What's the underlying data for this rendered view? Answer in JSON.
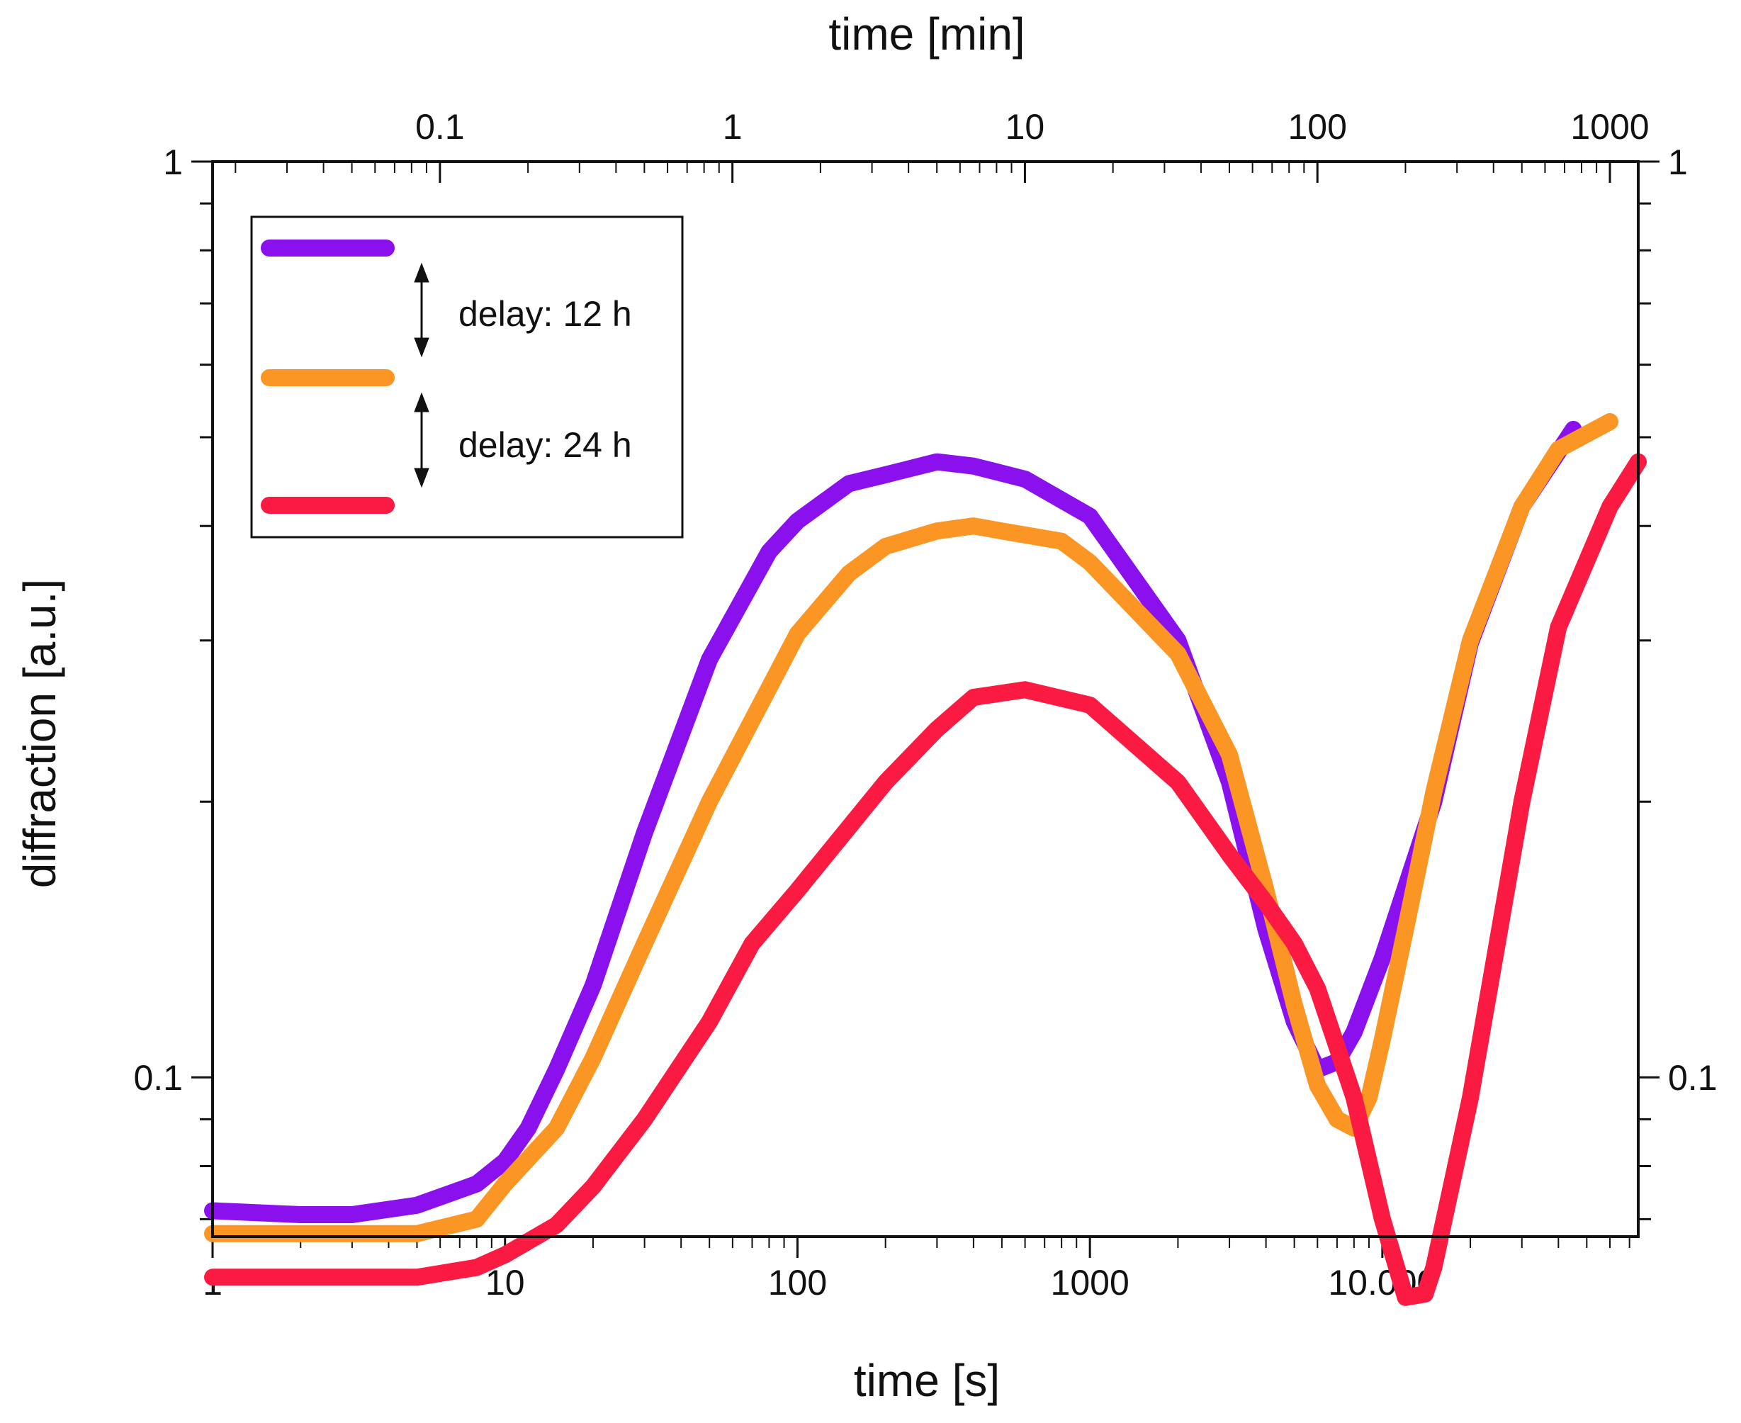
{
  "chart_data": {
    "type": "line",
    "xlabel": "time [s]",
    "x2label": "time [min]",
    "ylabel": "diffraction [a.u.]",
    "xscale": "log",
    "yscale": "log",
    "xlim": [
      1,
      75000
    ],
    "x2lim": [
      0.0167,
      1250
    ],
    "ylim": [
      0.067,
      1
    ],
    "x_ticks": [
      {
        "value": 1,
        "label": "1"
      },
      {
        "value": 10,
        "label": "10"
      },
      {
        "value": 100,
        "label": "100"
      },
      {
        "value": 1000,
        "label": "1000"
      },
      {
        "value": 10000,
        "label": "10.000"
      }
    ],
    "x2_ticks": [
      {
        "value": 0.1,
        "label": "0.1"
      },
      {
        "value": 1,
        "label": "1"
      },
      {
        "value": 10,
        "label": "10"
      },
      {
        "value": 100,
        "label": "100"
      },
      {
        "value": 1000,
        "label": "1000"
      }
    ],
    "y_ticks_left": [
      {
        "value": 1,
        "label": "1"
      },
      {
        "value": 0.1,
        "label": "0.1"
      }
    ],
    "y_ticks_right": [
      {
        "value": 1,
        "label": "1"
      },
      {
        "value": 0.1,
        "label": "0.1"
      }
    ],
    "legend": {
      "placement": "top-left",
      "annotations": [
        {
          "text": "delay: 12 h",
          "between": [
            "purple",
            "orange"
          ]
        },
        {
          "text": "delay: 24 h",
          "between": [
            "orange",
            "red"
          ]
        }
      ]
    },
    "series": [
      {
        "name": "purple",
        "color": "#8a10ee",
        "x": [
          1,
          2,
          3,
          5,
          8,
          10,
          12,
          15,
          20,
          30,
          50,
          80,
          100,
          150,
          200,
          300,
          400,
          600,
          1000,
          2000,
          3000,
          4000,
          5000,
          6000,
          7000,
          8000,
          10000,
          15000,
          20000,
          30000,
          45000
        ],
        "y": [
          0.0715,
          0.0708,
          0.0708,
          0.0725,
          0.0765,
          0.081,
          0.088,
          0.102,
          0.126,
          0.185,
          0.286,
          0.375,
          0.405,
          0.445,
          0.455,
          0.47,
          0.465,
          0.45,
          0.41,
          0.3,
          0.21,
          0.145,
          0.115,
          0.102,
          0.104,
          0.112,
          0.135,
          0.2,
          0.298,
          0.42,
          0.51
        ]
      },
      {
        "name": "orange",
        "color": "#fb9524",
        "x": [
          1,
          2,
          5,
          8,
          10,
          15,
          20,
          30,
          50,
          100,
          150,
          200,
          300,
          400,
          500,
          800,
          1000,
          2000,
          3000,
          4000,
          5000,
          6000,
          7000,
          8000,
          9000,
          10000,
          12000,
          15000,
          20000,
          30000,
          40000,
          60000
        ],
        "y": [
          0.0675,
          0.0675,
          0.0675,
          0.07,
          0.0765,
          0.088,
          0.105,
          0.14,
          0.2,
          0.305,
          0.355,
          0.38,
          0.395,
          0.4,
          0.395,
          0.385,
          0.365,
          0.29,
          0.225,
          0.16,
          0.12,
          0.098,
          0.09,
          0.088,
          0.095,
          0.11,
          0.145,
          0.205,
          0.3,
          0.42,
          0.485,
          0.52
        ]
      },
      {
        "name": "red",
        "color": "#fb1a42",
        "x": [
          1,
          2,
          5,
          8,
          10,
          15,
          20,
          30,
          50,
          70,
          100,
          200,
          300,
          400,
          600,
          1000,
          2000,
          3000,
          4000,
          5000,
          6000,
          8000,
          10000,
          12000,
          14000,
          15000,
          20000,
          30000,
          40000,
          60000,
          75000
        ],
        "y": [
          0.0605,
          0.0605,
          0.0605,
          0.062,
          0.064,
          0.069,
          0.076,
          0.09,
          0.115,
          0.14,
          0.16,
          0.21,
          0.24,
          0.26,
          0.265,
          0.255,
          0.21,
          0.175,
          0.155,
          0.14,
          0.125,
          0.095,
          0.07,
          0.0575,
          0.058,
          0.062,
          0.095,
          0.2,
          0.31,
          0.42,
          0.47
        ]
      }
    ]
  }
}
